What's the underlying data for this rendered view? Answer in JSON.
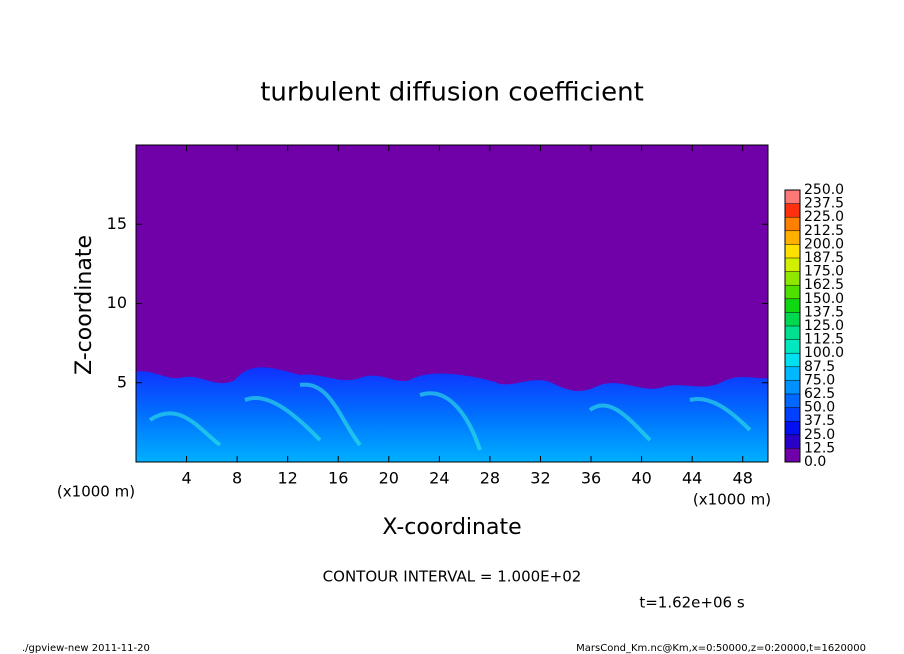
{
  "chart_data": {
    "type": "contour",
    "title": "turbulent diffusion coefficient",
    "xlabel": "X-coordinate",
    "ylabel": "Z-coordinate",
    "x_unit": "(x1000 m)",
    "y_unit": "(x1000 m)",
    "xlim": [
      0,
      50
    ],
    "xticks": [
      4,
      8,
      12,
      16,
      20,
      24,
      28,
      32,
      36,
      40,
      44,
      48
    ],
    "ylim": [
      0,
      20
    ],
    "yticks": [
      5,
      10,
      15
    ],
    "background_color": "#7000a8",
    "colorbar": {
      "levels": [
        {
          "value": 0,
          "label": "0.0"
        },
        {
          "value": 12.5,
          "label": "12.5"
        },
        {
          "value": 25,
          "label": "25.0"
        },
        {
          "value": 37.5,
          "label": "37.5"
        },
        {
          "value": 50,
          "label": "50.0"
        },
        {
          "value": 62.5,
          "label": "62.5"
        },
        {
          "value": 75,
          "label": "75.0"
        },
        {
          "value": 87.5,
          "label": "87.5"
        },
        {
          "value": 100,
          "label": "100.0"
        },
        {
          "value": 112.5,
          "label": "112.5"
        },
        {
          "value": 125,
          "label": "125.0"
        },
        {
          "value": 137.5,
          "label": "137.5"
        },
        {
          "value": 150,
          "label": "150.0"
        },
        {
          "value": 162.5,
          "label": "162.5"
        },
        {
          "value": 175,
          "label": "175.0"
        },
        {
          "value": 187.5,
          "label": "187.5"
        },
        {
          "value": 200,
          "label": "200.0"
        },
        {
          "value": 212.5,
          "label": "212.5"
        },
        {
          "value": 225,
          "label": "225.0"
        },
        {
          "value": 237.5,
          "label": "237.5"
        },
        {
          "value": 250,
          "label": "250.0"
        }
      ],
      "colors": [
        "#7000a8",
        "#2800c8",
        "#0010f0",
        "#0040ff",
        "#0068ff",
        "#0090ff",
        "#00b8ff",
        "#00e0f0",
        "#00e8c0",
        "#00e090",
        "#00d850",
        "#10d810",
        "#50e000",
        "#90e800",
        "#d0f000",
        "#ffe000",
        "#ffb000",
        "#ff8000",
        "#ff3010",
        "#ff7878"
      ]
    },
    "annotations": [
      "CONTOUR INTERVAL = 1.000E+02",
      "t=1.62e+06 s"
    ],
    "footer_left": "./gpview-new  2011-11-20",
    "footer_right": "MarsCond_Km.nc@Km,x=0:50000,z=0:20000,t=1620000"
  }
}
